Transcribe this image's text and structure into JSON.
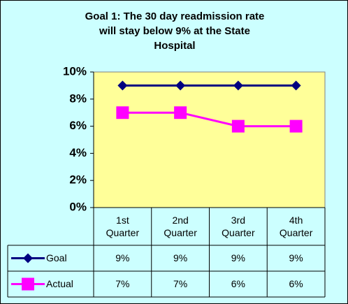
{
  "chart_data": {
    "type": "line",
    "title": [
      "Goal 1: The 30 day readmission rate",
      "will stay below 9% at the State",
      "Hospital"
    ],
    "categories": [
      "1st Quarter",
      "2nd Quarter",
      "3rd Quarter",
      "4th Quarter"
    ],
    "series": [
      {
        "name": "Goal",
        "color": "#000080",
        "marker": "diamond",
        "values": [
          9,
          9,
          9,
          9
        ],
        "value_labels": [
          "9%",
          "9%",
          "9%",
          "9%"
        ]
      },
      {
        "name": "Actual",
        "color": "#ff00ff",
        "marker": "square",
        "values": [
          7,
          7,
          6,
          6
        ],
        "value_labels": [
          "7%",
          "7%",
          "6%",
          "6%"
        ]
      }
    ],
    "ylim": [
      0,
      10
    ],
    "yticks": [
      {
        "value": 0,
        "label": "0%"
      },
      {
        "value": 2,
        "label": "2%"
      },
      {
        "value": 4,
        "label": "4%"
      },
      {
        "value": 6,
        "label": "6%"
      },
      {
        "value": 8,
        "label": "8%"
      },
      {
        "value": 10,
        "label": "10%"
      }
    ],
    "grid": false
  }
}
